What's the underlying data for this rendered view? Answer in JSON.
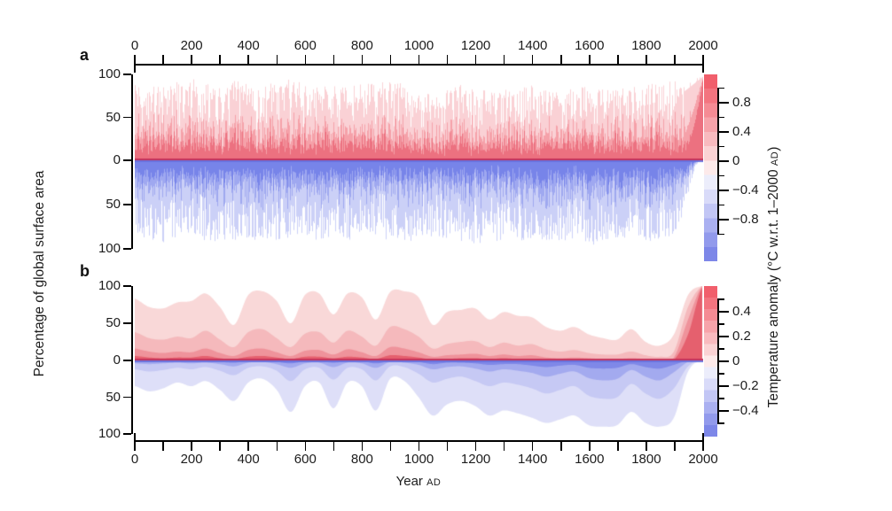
{
  "panels": {
    "a": {
      "label": "a"
    },
    "b": {
      "label": "b"
    }
  },
  "axes": {
    "x": {
      "range_years": [
        0,
        2000
      ],
      "tick_values": [
        0,
        200,
        400,
        600,
        800,
        1000,
        1200,
        1400,
        1600,
        1800,
        2000
      ],
      "tick_labels": [
        "0",
        "200",
        "400",
        "600",
        "800",
        "1000",
        "1200",
        "1400",
        "1600",
        "1800",
        "2000"
      ],
      "minor_tick_step_years": 100,
      "label_main": "Year",
      "label_suffix": "AD"
    },
    "y_area": {
      "label": "Percentage of global surface area",
      "tick_labels": [
        "100",
        "50",
        "0",
        "50",
        "100"
      ],
      "tick_values": [
        100,
        50,
        0,
        -50,
        -100
      ]
    },
    "colorbar_label": {
      "prefix": "Temperature anomaly (°C w.r.t. 1–2000 ",
      "smallcaps": "AD",
      "suffix": ")"
    }
  },
  "colorbars": {
    "segment_colors": [
      "#f15f6c",
      "#f3747f",
      "#f58b94",
      "#f7a3aa",
      "#f9babf",
      "#fbd2d4",
      "#fdeaea",
      "#ecedfb",
      "#d9dbf9",
      "#c2c6f5",
      "#aab0f1",
      "#929aec",
      "#7d87e8"
    ],
    "a": {
      "major_tick_values": [
        0.8,
        0.4,
        0,
        -0.4,
        -0.8
      ],
      "major_tick_labels": [
        "0.8",
        "0.4",
        "0",
        "−0.4",
        "−0.8"
      ],
      "minor_tick_step": 0.2,
      "tick_span": [
        1.0,
        -1.0
      ]
    },
    "b": {
      "major_tick_values": [
        0.4,
        0.2,
        0,
        -0.2,
        -0.4
      ],
      "major_tick_labels": [
        "0.4",
        "0.2",
        "0",
        "−0.2",
        "−0.4"
      ],
      "minor_tick_step": 0.1,
      "tick_span": [
        0.5,
        -0.5
      ]
    }
  },
  "chart_data": [
    {
      "panel": "a",
      "type": "area",
      "description": "Yearly noisy spikes: percentage of global surface area with warm anomalies (red, plotted upward) and cold anomalies (blue, plotted downward); spike color darkens toward the zero baseline; near AD 1950-2000 warm area becomes dark red and approaches 100% while cold area vanishes",
      "xlabel": "Year AD",
      "ylabel": "Percentage of global surface area",
      "colorbar_label": "Temperature anomaly (°C w.r.t. 1–2000 AD)",
      "x_range": [
        0,
        2000
      ],
      "y_range_percent_up_down": [
        100,
        100
      ],
      "colorbar_tick_values": [
        0.8,
        0.4,
        0,
        -0.4,
        -0.8
      ],
      "sample_step_years": 50,
      "warm_spike_envelope_percent": [
        90,
        93,
        88,
        92,
        95,
        90,
        88,
        93,
        90,
        86,
        92,
        95,
        90,
        87,
        92,
        85,
        90,
        93,
        95,
        88,
        84,
        76,
        82,
        88,
        85,
        80,
        82,
        85,
        88,
        82,
        80,
        84,
        86,
        82,
        84,
        86,
        88,
        90,
        95,
        97,
        99
      ],
      "cool_spike_envelope_percent": [
        88,
        90,
        93,
        88,
        85,
        92,
        94,
        90,
        88,
        93,
        90,
        87,
        92,
        95,
        88,
        90,
        88,
        85,
        92,
        94,
        88,
        86,
        90,
        92,
        95,
        92,
        90,
        93,
        88,
        90,
        92,
        95,
        97,
        92,
        90,
        87,
        90,
        93,
        85,
        45,
        4
      ],
      "noise_seed": 20190724
    },
    {
      "panel": "b",
      "type": "area",
      "description": "Smoothed nested bands: percentage of global surface area exceeding successively larger warm (red, upward) and cold (blue, downward) anomaly magnitudes; deep blue maximum around AD 1450-1900 (Little Ice Age), all warm bands rise to ~100% by AD 2000",
      "xlabel": "Year AD",
      "ylabel": "Percentage of global surface area",
      "colorbar_label": "Temperature anomaly (°C w.r.t. 1–2000 AD)",
      "x_range": [
        0,
        2000
      ],
      "colorbar_tick_values": [
        0.4,
        0.2,
        0,
        -0.2,
        -0.4
      ],
      "sample_step_years": 50,
      "series": [
        {
          "name": "warm-band-1-lightest-largest-area",
          "color": "#f9d8d8",
          "values": [
            83,
            72,
            70,
            78,
            80,
            90,
            72,
            48,
            88,
            93,
            80,
            50,
            88,
            90,
            62,
            90,
            85,
            55,
            92,
            93,
            85,
            48,
            65,
            68,
            70,
            55,
            65,
            60,
            58,
            45,
            40,
            45,
            35,
            30,
            28,
            42,
            25,
            20,
            35,
            88,
            100
          ]
        },
        {
          "name": "warm-band-2",
          "color": "#f5b9bc",
          "values": [
            38,
            30,
            28,
            32,
            30,
            40,
            28,
            18,
            38,
            42,
            30,
            18,
            36,
            38,
            24,
            40,
            32,
            20,
            45,
            42,
            32,
            16,
            22,
            25,
            26,
            18,
            24,
            20,
            22,
            15,
            12,
            14,
            10,
            8,
            8,
            12,
            7,
            5,
            12,
            72,
            100
          ]
        },
        {
          "name": "warm-band-3",
          "color": "#ef939b",
          "values": [
            16,
            12,
            10,
            12,
            11,
            16,
            10,
            6,
            14,
            16,
            11,
            6,
            13,
            14,
            8,
            15,
            11,
            6,
            18,
            16,
            11,
            5,
            7,
            8,
            9,
            6,
            8,
            6,
            7,
            4,
            3,
            4,
            3,
            2,
            2,
            3,
            2,
            1,
            4,
            55,
            100
          ]
        },
        {
          "name": "warm-band-4-darkest-strongest-anomaly",
          "color": "#e5606e",
          "values": [
            6,
            4,
            3,
            4,
            4,
            6,
            3,
            2,
            5,
            6,
            4,
            2,
            5,
            5,
            3,
            5,
            4,
            2,
            7,
            6,
            4,
            1,
            2,
            3,
            3,
            2,
            3,
            2,
            2,
            1,
            1,
            1,
            1,
            1,
            1,
            1,
            0,
            0,
            1,
            35,
            98
          ]
        },
        {
          "name": "cool-band-1-lightest-largest-area",
          "color": "#dedff8",
          "values": [
            35,
            42,
            38,
            30,
            35,
            28,
            40,
            55,
            30,
            25,
            40,
            70,
            35,
            30,
            65,
            30,
            35,
            68,
            25,
            28,
            50,
            75,
            60,
            55,
            62,
            75,
            68,
            72,
            78,
            85,
            80,
            75,
            88,
            90,
            88,
            70,
            85,
            90,
            78,
            15,
            0
          ]
        },
        {
          "name": "cool-band-2",
          "color": "#c6c9f4",
          "values": [
            12,
            15,
            13,
            10,
            12,
            9,
            14,
            20,
            10,
            8,
            14,
            28,
            12,
            10,
            26,
            10,
            12,
            27,
            8,
            9,
            18,
            30,
            25,
            22,
            28,
            35,
            30,
            33,
            38,
            45,
            40,
            35,
            48,
            52,
            50,
            32,
            45,
            52,
            38,
            8,
            0
          ]
        },
        {
          "name": "cool-band-3",
          "color": "#a3aaef",
          "values": [
            4,
            5,
            4,
            3,
            4,
            3,
            5,
            8,
            3,
            2,
            5,
            10,
            4,
            3,
            9,
            3,
            4,
            10,
            2,
            3,
            6,
            12,
            9,
            8,
            11,
            15,
            12,
            14,
            17,
            22,
            18,
            15,
            24,
            27,
            25,
            13,
            22,
            27,
            16,
            2,
            0
          ]
        },
        {
          "name": "cool-band-4-darkest-strongest-anomaly",
          "color": "#7f88e8",
          "values": [
            1,
            2,
            1,
            1,
            1,
            1,
            2,
            3,
            1,
            1,
            2,
            4,
            1,
            1,
            3,
            1,
            1,
            4,
            1,
            1,
            2,
            5,
            3,
            3,
            4,
            6,
            5,
            5,
            7,
            9,
            7,
            6,
            10,
            11,
            10,
            5,
            9,
            11,
            6,
            0,
            0
          ]
        }
      ]
    }
  ]
}
